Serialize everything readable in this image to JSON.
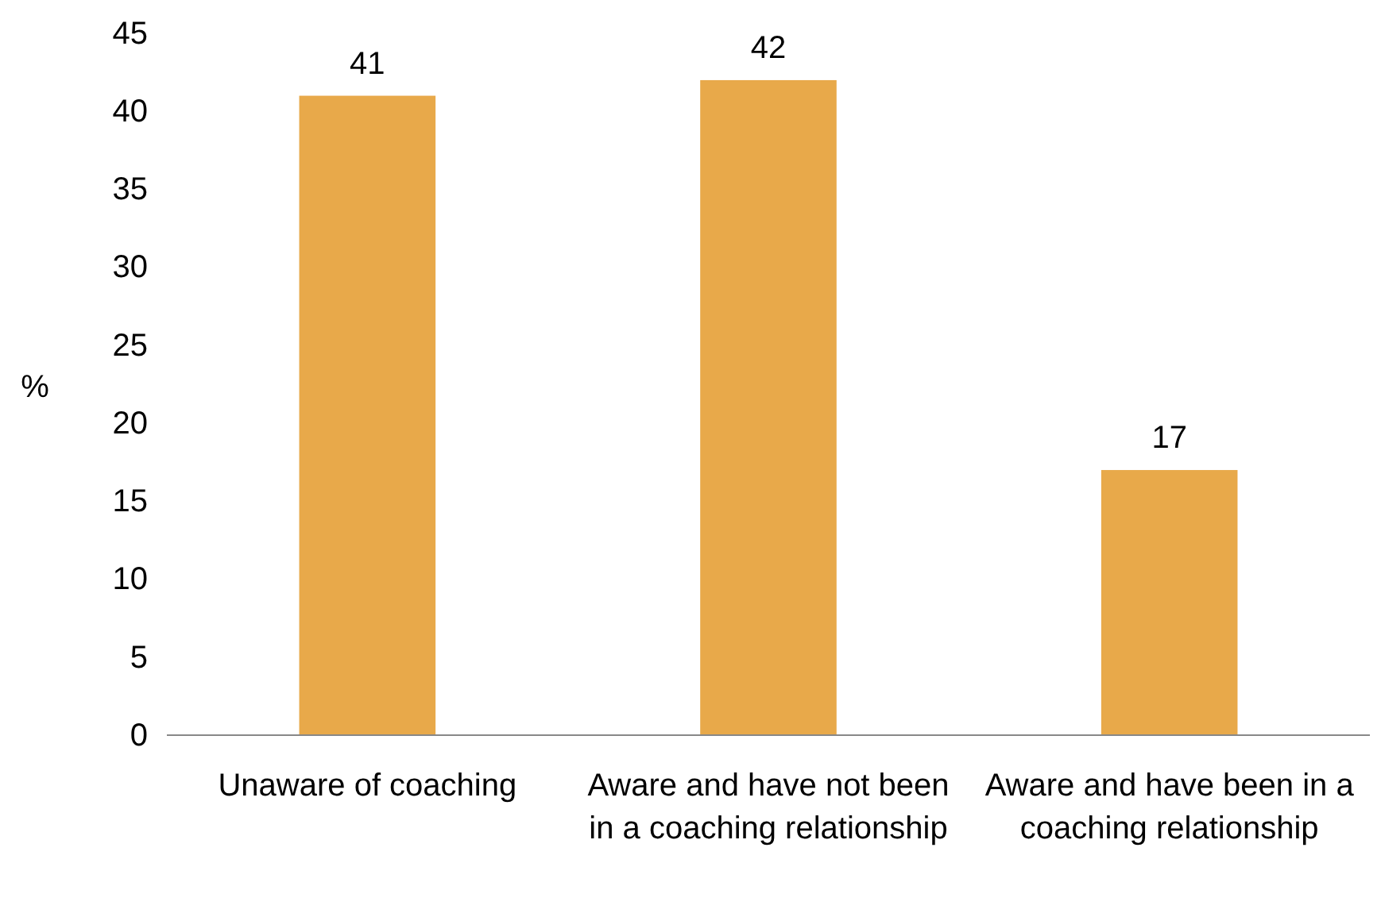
{
  "chart_data": {
    "type": "bar",
    "ylabel": "%",
    "categories": [
      "Unaware of coaching",
      "Aware and have not been in a coaching relationship",
      "Aware and have been in a coaching relationship"
    ],
    "values": [
      41,
      42,
      17
    ],
    "color": "#e8a94a",
    "ylim": [
      0,
      45
    ],
    "yticks": [
      0,
      5,
      10,
      15,
      20,
      25,
      30,
      35,
      40,
      45
    ],
    "grid": false,
    "data_labels": true
  }
}
